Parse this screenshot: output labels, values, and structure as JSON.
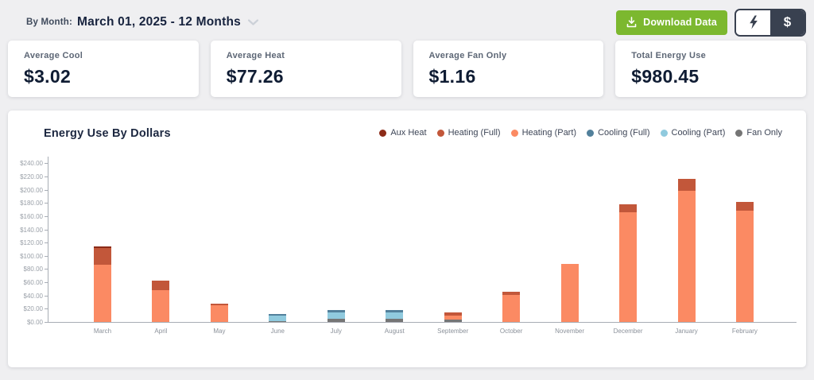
{
  "header": {
    "by_month_label": "By Month:",
    "date_range": "March 01, 2025 - 12 Months",
    "download_label": "Download Data",
    "dollar_toggle_label": "$"
  },
  "stats": [
    {
      "label": "Average Cool",
      "value": "$3.02"
    },
    {
      "label": "Average Heat",
      "value": "$77.26"
    },
    {
      "label": "Average Fan Only",
      "value": "$1.16"
    },
    {
      "label": "Total Energy Use",
      "value": "$980.45"
    }
  ],
  "chart_data": {
    "type": "bar",
    "stacked": true,
    "title": "Energy Use By Dollars",
    "xlabel": "",
    "ylabel": "",
    "ylim": [
      0,
      250
    ],
    "grid": false,
    "legend_position": "top-right",
    "categories": [
      "March",
      "April",
      "May",
      "June",
      "July",
      "August",
      "September",
      "October",
      "November",
      "December",
      "January",
      "February"
    ],
    "series": [
      {
        "name": "Fan Only",
        "color": "#757575",
        "values": [
          0,
          0,
          0,
          1,
          5,
          5,
          3.5,
          0,
          0,
          0,
          0,
          0
        ]
      },
      {
        "name": "Cooling (Part)",
        "color": "#90cade",
        "values": [
          0,
          0,
          0,
          8.5,
          9,
          10,
          0,
          0,
          0,
          0,
          0,
          0
        ]
      },
      {
        "name": "Cooling (Full)",
        "color": "#52809b",
        "values": [
          0,
          0,
          0,
          3,
          4,
          3,
          0,
          0,
          0,
          0,
          0,
          0
        ]
      },
      {
        "name": "Heating (Part)",
        "color": "#fb8a63",
        "values": [
          86,
          48,
          25,
          0,
          0,
          0,
          6,
          41,
          88,
          166,
          198,
          168
        ]
      },
      {
        "name": "Heating (Full)",
        "color": "#c2573a",
        "values": [
          26,
          14,
          3,
          0,
          0,
          0,
          5.5,
          5,
          0,
          12,
          18,
          13
        ]
      },
      {
        "name": "Aux Heat",
        "color": "#8c2b18",
        "values": [
          2.5,
          0,
          0,
          0,
          0,
          0,
          0,
          0,
          0,
          0,
          0,
          0
        ]
      }
    ],
    "legend_order": [
      "Aux Heat",
      "Heating (Full)",
      "Heating (Part)",
      "Cooling (Full)",
      "Cooling (Part)",
      "Fan Only"
    ],
    "y_ticks": [
      {
        "value": 0,
        "label": "$0.00"
      },
      {
        "value": 20,
        "label": "$20.00"
      },
      {
        "value": 40,
        "label": "$40.00"
      },
      {
        "value": 60,
        "label": "$60.00"
      },
      {
        "value": 80,
        "label": "$80.00"
      },
      {
        "value": 100,
        "label": "$100.00"
      },
      {
        "value": 120,
        "label": "$120.00"
      },
      {
        "value": 140,
        "label": "$140.00"
      },
      {
        "value": 160,
        "label": "$160.00"
      },
      {
        "value": 180,
        "label": "$180.00"
      },
      {
        "value": 200,
        "label": "$200.00"
      },
      {
        "value": 220,
        "label": "$220.00"
      },
      {
        "value": 240,
        "label": "$240.00"
      }
    ]
  }
}
